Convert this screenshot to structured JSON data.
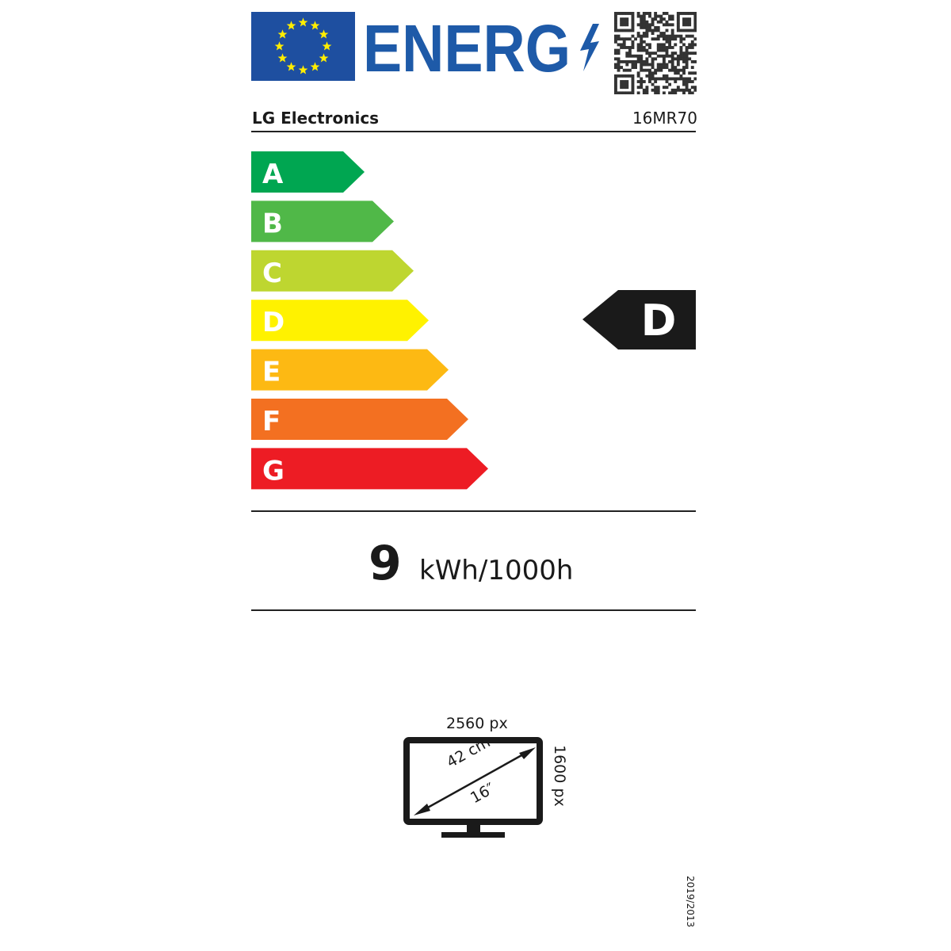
{
  "header": {
    "logo_text": "ENERG",
    "supplier": "LG Electronics",
    "model": "16MR70",
    "colors": {
      "eu_blue": "#1e4fa0",
      "star_yellow": "#ffed00",
      "energ_blue": "#1e5aa8"
    }
  },
  "scale": {
    "classes": [
      {
        "label": "A",
        "color": "#00a651"
      },
      {
        "label": "B",
        "color": "#50b848"
      },
      {
        "label": "C",
        "color": "#bed630"
      },
      {
        "label": "D",
        "color": "#fff200"
      },
      {
        "label": "E",
        "color": "#fdb913"
      },
      {
        "label": "F",
        "color": "#f37021"
      },
      {
        "label": "G",
        "color": "#ed1c24"
      }
    ],
    "rating": "D"
  },
  "consumption": {
    "value": "9",
    "unit": "kWh/1000h"
  },
  "screen": {
    "width_px": "2560 px",
    "height_px": "1600 px",
    "diagonal_cm": "42 cm",
    "diagonal_in": "16″"
  },
  "regulation": "2019/2013"
}
